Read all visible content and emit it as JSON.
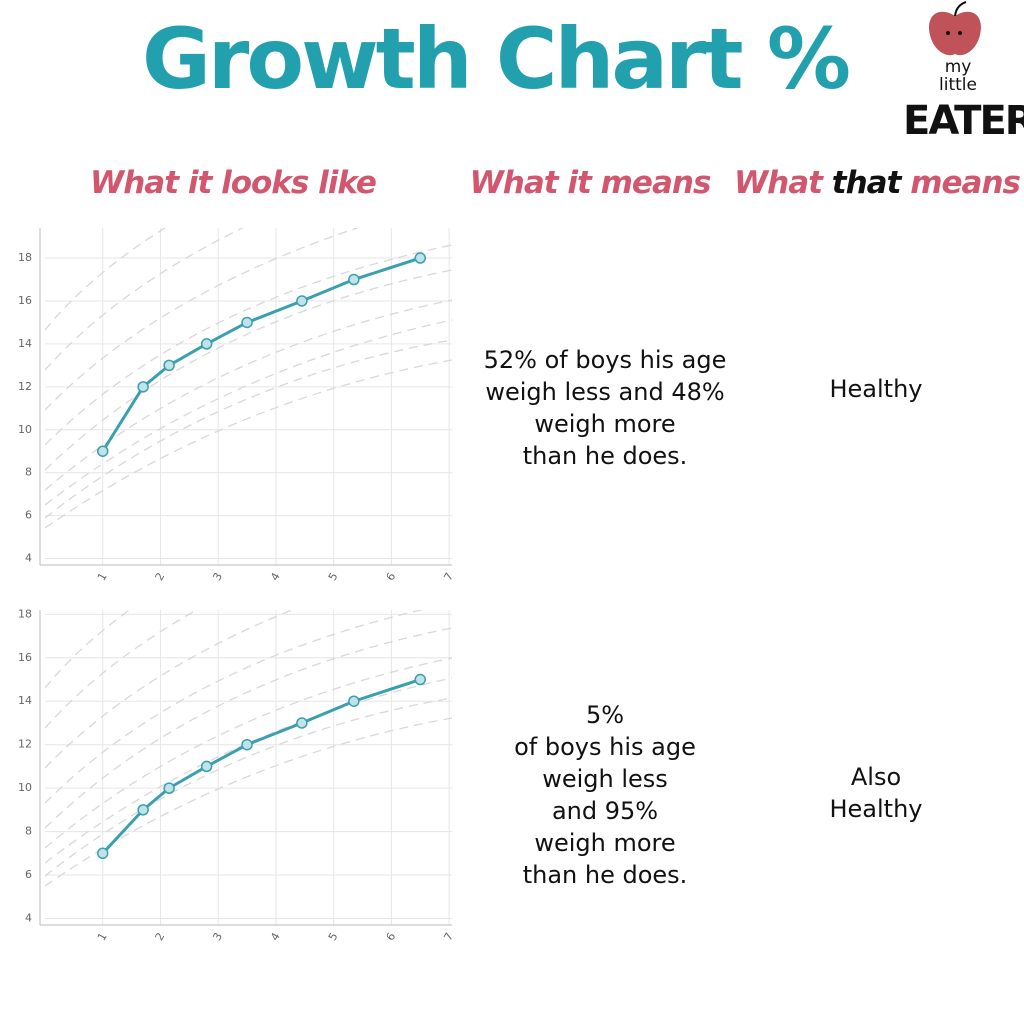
{
  "title": "Growth Chart %",
  "logo": [
    "my",
    "little",
    "EATER"
  ],
  "headers": [
    "What it looks like",
    "What it means",
    [
      "What",
      "that",
      "means"
    ]
  ],
  "rows": [
    {
      "means": [
        "52% of boys his age",
        "weigh less and 48%",
        "weigh more",
        "than he does."
      ],
      "verdict": [
        "Healthy"
      ]
    },
    {
      "means": [
        "5%",
        "of boys his age",
        "weigh less",
        "and 95%",
        "weigh more",
        "than he does."
      ],
      "verdict": [
        "Also",
        "Healthy"
      ]
    }
  ],
  "chart_data": [
    {
      "type": "line",
      "x": [
        1.0,
        1.7,
        2.15,
        2.8,
        3.5,
        4.45,
        5.35,
        6.5
      ],
      "series": [
        {
          "color": "#3a9fae",
          "values": [
            9,
            12,
            13,
            14,
            15,
            16,
            17,
            18
          ]
        }
      ],
      "xlim": [
        0,
        7.05
      ],
      "ylim": [
        3.7,
        19.4
      ],
      "xticks": [
        1,
        2,
        3,
        4,
        5,
        6,
        7
      ],
      "yticks": [
        4,
        6,
        8,
        10,
        12,
        14,
        16,
        18
      ],
      "grid": true
    },
    {
      "type": "line",
      "x": [
        1.0,
        1.7,
        2.15,
        2.8,
        3.5,
        4.45,
        5.35,
        6.5
      ],
      "series": [
        {
          "color": "#3a9fae",
          "values": [
            7,
            9,
            10,
            11,
            12,
            13,
            14,
            15
          ]
        }
      ],
      "xlim": [
        0,
        7.05
      ],
      "ylim": [
        3.7,
        18.2
      ],
      "xticks": [
        1,
        2,
        3,
        4,
        5,
        6,
        7
      ],
      "yticks": [
        4,
        6,
        8,
        10,
        12,
        14,
        16,
        18
      ],
      "grid": true
    }
  ]
}
